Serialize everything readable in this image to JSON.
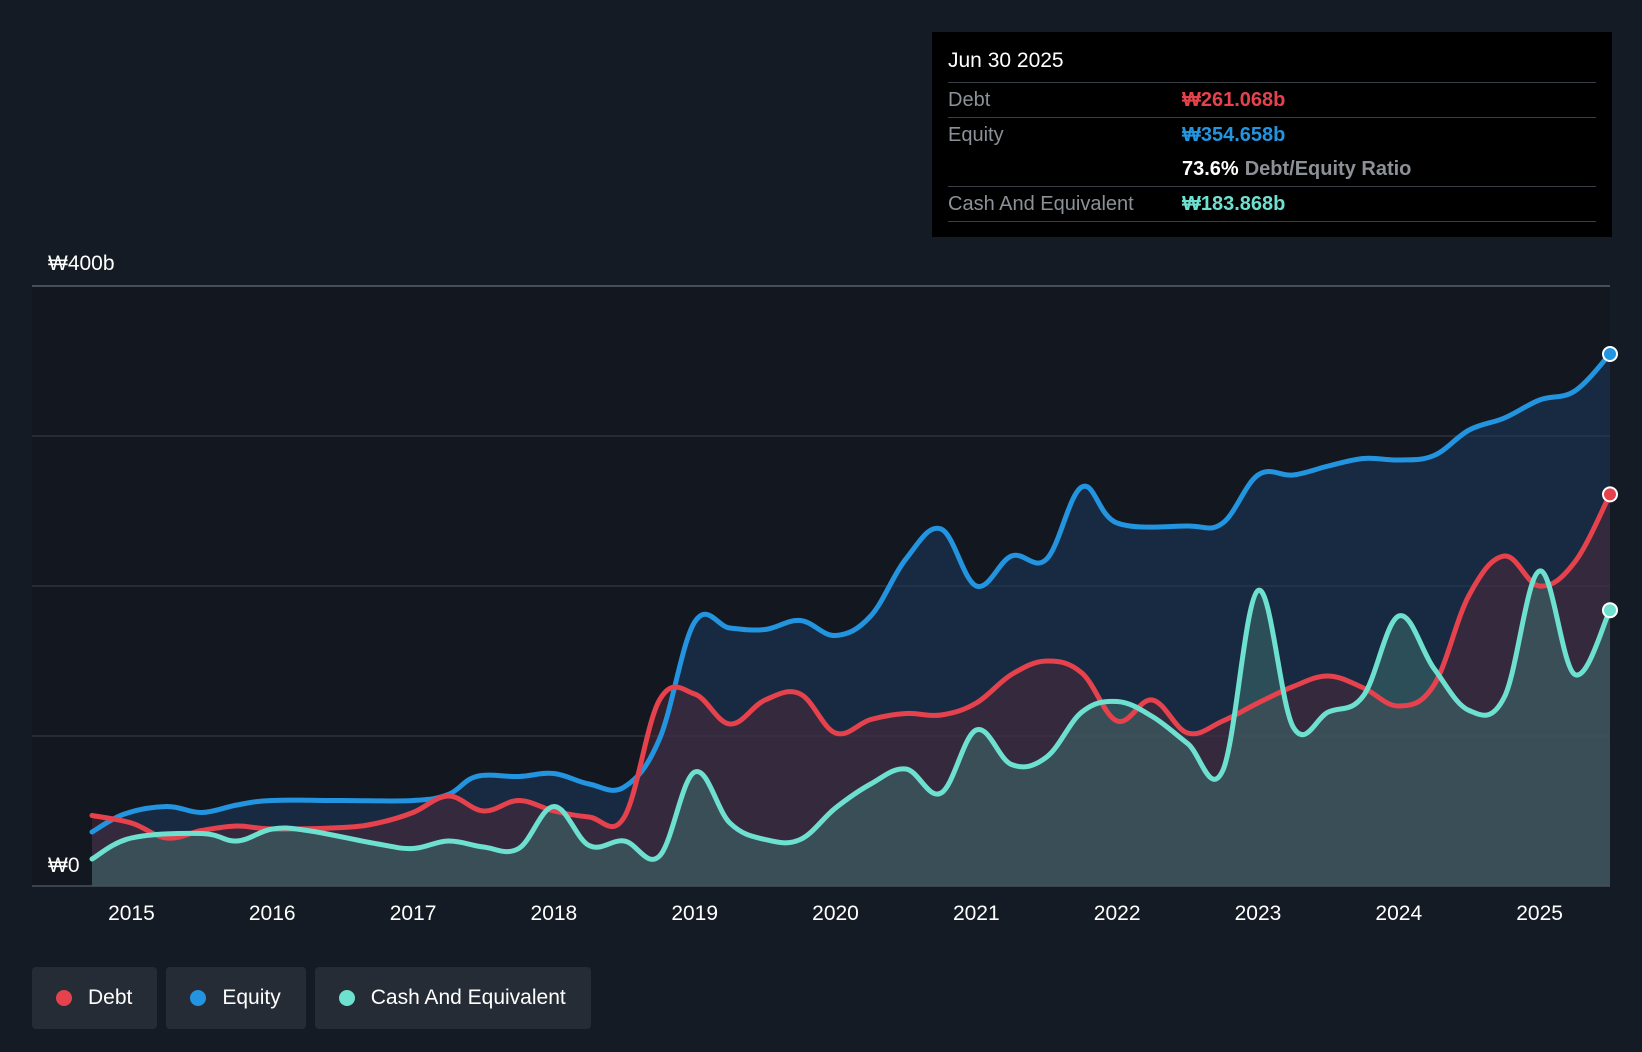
{
  "tooltip": {
    "date": "Jun 30 2025",
    "debt_label": "Debt",
    "debt_value": "₩261.068b",
    "equity_label": "Equity",
    "equity_value": "₩354.658b",
    "ratio_value": "73.6%",
    "ratio_label": "Debt/Equity Ratio",
    "cash_label": "Cash And Equivalent",
    "cash_value": "₩183.868b"
  },
  "legend": [
    {
      "label": "Debt",
      "color": "#e5424d"
    },
    {
      "label": "Equity",
      "color": "#2394df"
    },
    {
      "label": "Cash And Equivalent",
      "color": "#6ee0d0"
    }
  ],
  "chart_data": {
    "type": "area",
    "title": "",
    "xlabel": "",
    "ylabel": "",
    "ylim": [
      0,
      400
    ],
    "xlim": [
      2014.72,
      2025.5
    ],
    "y_tick_labels": [
      {
        "value": 400,
        "label": "₩400b"
      },
      {
        "value": 0,
        "label": "₩0"
      }
    ],
    "y_gridlines": [
      0,
      100,
      200,
      300,
      400
    ],
    "x_ticks": [
      "2015",
      "2016",
      "2017",
      "2018",
      "2019",
      "2020",
      "2021",
      "2022",
      "2023",
      "2024",
      "2025"
    ],
    "series": [
      {
        "name": "Equity",
        "color": "#2394df",
        "points": [
          [
            2014.72,
            36
          ],
          [
            2014.95,
            48
          ],
          [
            2015.25,
            53
          ],
          [
            2015.5,
            49
          ],
          [
            2015.75,
            54
          ],
          [
            2016.0,
            57
          ],
          [
            2016.5,
            57
          ],
          [
            2017.0,
            57
          ],
          [
            2017.25,
            61
          ],
          [
            2017.45,
            73
          ],
          [
            2017.75,
            73
          ],
          [
            2018.0,
            75
          ],
          [
            2018.25,
            68
          ],
          [
            2018.5,
            66
          ],
          [
            2018.75,
            98
          ],
          [
            2019.0,
            176
          ],
          [
            2019.25,
            172
          ],
          [
            2019.5,
            171
          ],
          [
            2019.75,
            177
          ],
          [
            2020.0,
            167
          ],
          [
            2020.25,
            180
          ],
          [
            2020.5,
            218
          ],
          [
            2020.75,
            238
          ],
          [
            2021.0,
            200
          ],
          [
            2021.25,
            220
          ],
          [
            2021.5,
            218
          ],
          [
            2021.75,
            266
          ],
          [
            2022.0,
            242
          ],
          [
            2022.5,
            240
          ],
          [
            2022.75,
            242
          ],
          [
            2023.0,
            274
          ],
          [
            2023.25,
            274
          ],
          [
            2023.5,
            280
          ],
          [
            2023.75,
            285
          ],
          [
            2024.0,
            284
          ],
          [
            2024.25,
            287
          ],
          [
            2024.5,
            304
          ],
          [
            2024.75,
            312
          ],
          [
            2025.0,
            324
          ],
          [
            2025.25,
            330
          ],
          [
            2025.5,
            354.658
          ]
        ]
      },
      {
        "name": "Debt",
        "color": "#e5424d",
        "points": [
          [
            2014.72,
            47
          ],
          [
            2015.0,
            42
          ],
          [
            2015.25,
            32
          ],
          [
            2015.5,
            37
          ],
          [
            2015.75,
            40
          ],
          [
            2016.0,
            38
          ],
          [
            2016.5,
            39
          ],
          [
            2016.75,
            42
          ],
          [
            2017.0,
            49
          ],
          [
            2017.25,
            60
          ],
          [
            2017.5,
            50
          ],
          [
            2017.75,
            57
          ],
          [
            2018.0,
            50
          ],
          [
            2018.25,
            46
          ],
          [
            2018.5,
            46
          ],
          [
            2018.75,
            124
          ],
          [
            2019.0,
            128
          ],
          [
            2019.25,
            108
          ],
          [
            2019.5,
            124
          ],
          [
            2019.75,
            128
          ],
          [
            2020.0,
            102
          ],
          [
            2020.25,
            111
          ],
          [
            2020.5,
            115
          ],
          [
            2020.75,
            114
          ],
          [
            2021.0,
            122
          ],
          [
            2021.25,
            141
          ],
          [
            2021.5,
            150
          ],
          [
            2021.75,
            142
          ],
          [
            2022.0,
            110
          ],
          [
            2022.25,
            124
          ],
          [
            2022.5,
            102
          ],
          [
            2022.75,
            110
          ],
          [
            2023.0,
            122
          ],
          [
            2023.25,
            133
          ],
          [
            2023.5,
            140
          ],
          [
            2023.75,
            132
          ],
          [
            2024.0,
            120
          ],
          [
            2024.25,
            134
          ],
          [
            2024.5,
            194
          ],
          [
            2024.75,
            220
          ],
          [
            2025.0,
            200
          ],
          [
            2025.25,
            216
          ],
          [
            2025.5,
            261.068
          ]
        ]
      },
      {
        "name": "Cash And Equivalent",
        "color": "#6ee0d0",
        "points": [
          [
            2014.72,
            18
          ],
          [
            2015.0,
            32
          ],
          [
            2015.5,
            35
          ],
          [
            2015.75,
            30
          ],
          [
            2016.0,
            38
          ],
          [
            2016.25,
            37
          ],
          [
            2016.75,
            28
          ],
          [
            2017.0,
            25
          ],
          [
            2017.25,
            30
          ],
          [
            2017.5,
            26
          ],
          [
            2017.75,
            25
          ],
          [
            2018.0,
            53
          ],
          [
            2018.25,
            27
          ],
          [
            2018.5,
            30
          ],
          [
            2018.75,
            20
          ],
          [
            2019.0,
            76
          ],
          [
            2019.25,
            42
          ],
          [
            2019.5,
            31
          ],
          [
            2019.75,
            31
          ],
          [
            2020.0,
            52
          ],
          [
            2020.25,
            68
          ],
          [
            2020.5,
            78
          ],
          [
            2020.75,
            62
          ],
          [
            2021.0,
            104
          ],
          [
            2021.25,
            81
          ],
          [
            2021.5,
            86
          ],
          [
            2021.75,
            116
          ],
          [
            2022.0,
            123
          ],
          [
            2022.25,
            113
          ],
          [
            2022.5,
            95
          ],
          [
            2022.75,
            77
          ],
          [
            2023.0,
            197
          ],
          [
            2023.25,
            106
          ],
          [
            2023.5,
            116
          ],
          [
            2023.75,
            127
          ],
          [
            2024.0,
            180
          ],
          [
            2024.25,
            145
          ],
          [
            2024.5,
            117
          ],
          [
            2024.75,
            126
          ],
          [
            2025.0,
            210
          ],
          [
            2025.25,
            141
          ],
          [
            2025.5,
            183.868
          ]
        ]
      }
    ]
  }
}
